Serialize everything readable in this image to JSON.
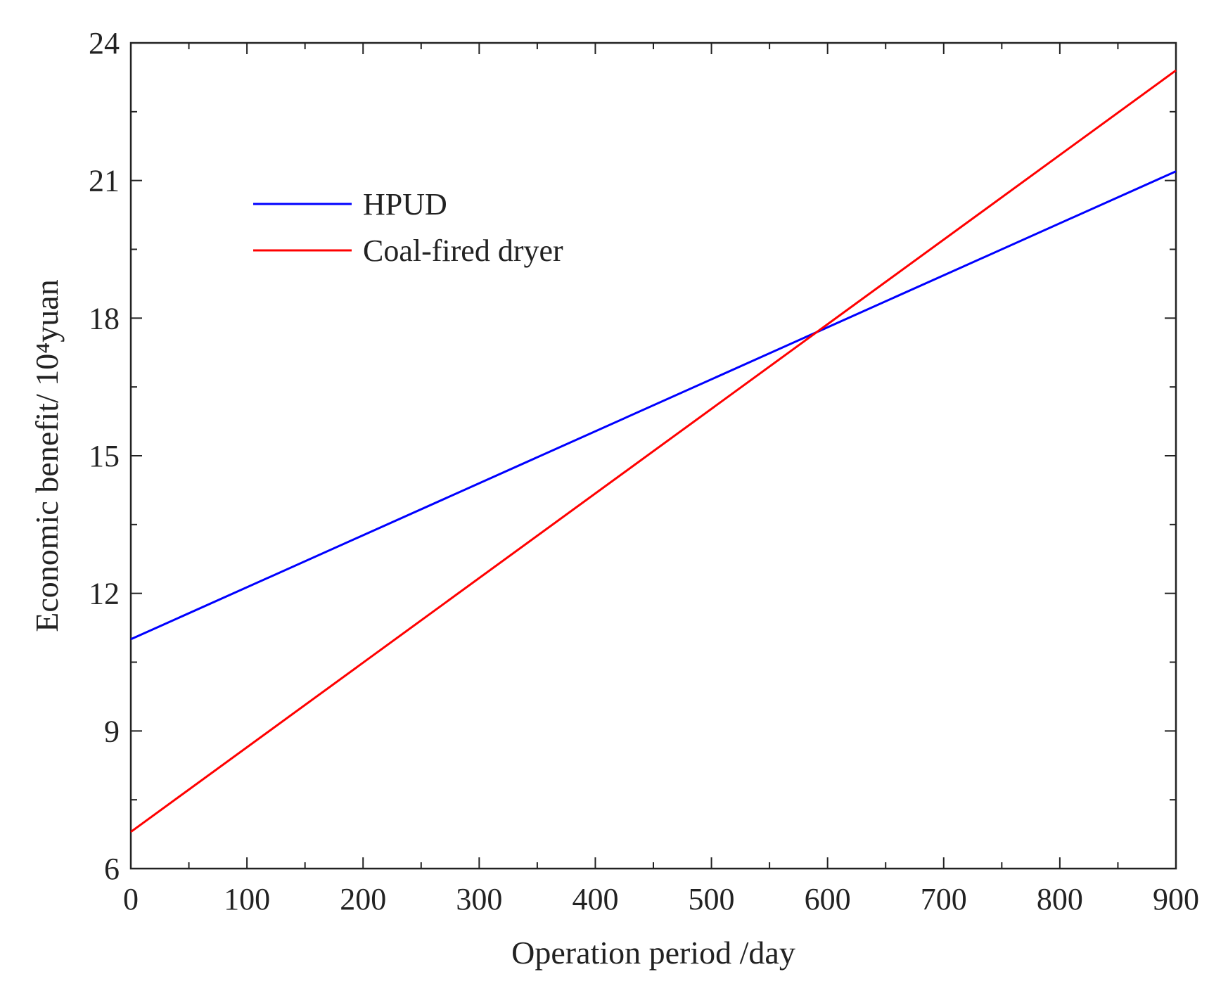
{
  "chart_data": {
    "type": "line",
    "title": "",
    "xlabel": "Operation period /day",
    "ylabel": "Economic benefit/ 10⁴yuan",
    "xlim": [
      0,
      900
    ],
    "ylim": [
      6,
      24
    ],
    "x_ticks": [
      "0",
      "100",
      "200",
      "300",
      "400",
      "500",
      "600",
      "700",
      "800",
      "900"
    ],
    "y_ticks": [
      "6",
      "9",
      "12",
      "15",
      "18",
      "21",
      "24"
    ],
    "x_minor_step": 50,
    "y_minor_step": 1.5,
    "grid": false,
    "legend_position": "upper-left",
    "series": [
      {
        "name": "HPUD",
        "color": "#0000ff",
        "x": [
          0,
          900
        ],
        "y": [
          11.0,
          21.2
        ]
      },
      {
        "name": "Coal-fired dryer",
        "color": "#ff0000",
        "x": [
          0,
          900
        ],
        "y": [
          6.8,
          23.4
        ]
      }
    ]
  }
}
